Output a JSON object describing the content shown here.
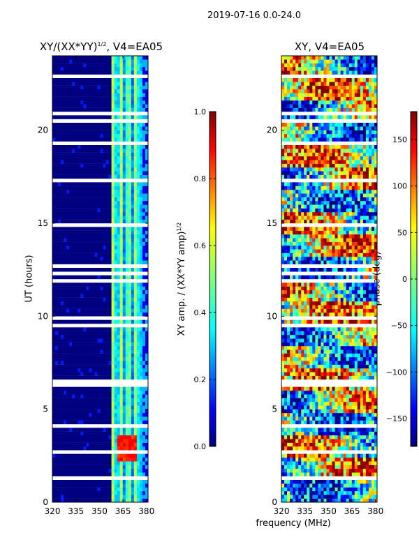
{
  "figure_title": "2019-07-16 0.0-24.0",
  "chart_data": [
    {
      "type": "heatmap",
      "title_main": "XY/(XX*YY)",
      "title_exponent": "1/2",
      "title_suffix": ", V4=EA05",
      "xlabel": "",
      "ylabel": "UT (hours)",
      "xlim": [
        320,
        381
      ],
      "ylim": [
        0,
        24
      ],
      "xticks": [
        320,
        335,
        350,
        365,
        380
      ],
      "yticks": [
        0,
        5,
        10,
        15,
        20
      ],
      "colorbar": {
        "label_main": "XY amp. / (XX*YY amp)",
        "label_exponent": "1/2",
        "range": [
          0.0,
          1.0
        ],
        "ticks": [
          "0.0",
          "0.2",
          "0.4",
          "0.6",
          "0.8",
          "1.0"
        ],
        "colormap": "jet"
      },
      "notes": "Low values (~0) below ~358 MHz; elevated 0.3-0.6 between ~360 and ~378 MHz, peaks ~0.8 near UT 3"
    },
    {
      "type": "heatmap",
      "title": "XY, V4=EA05",
      "xlabel": "frequency (MHz)",
      "ylabel": "",
      "xlim": [
        320,
        381
      ],
      "ylim": [
        0,
        24
      ],
      "xticks": [
        320,
        335,
        350,
        365,
        380
      ],
      "yticks": [
        0,
        5,
        10,
        15,
        20
      ],
      "colorbar": {
        "label": "phase (deg)",
        "range": [
          -180,
          180
        ],
        "ticks": [
          "150",
          "100",
          "50",
          "0",
          "−50",
          "−100",
          "−150"
        ],
        "colormap": "jet"
      },
      "notes": "Phase noise spanning full -180 to 180 range across all frequencies"
    }
  ]
}
